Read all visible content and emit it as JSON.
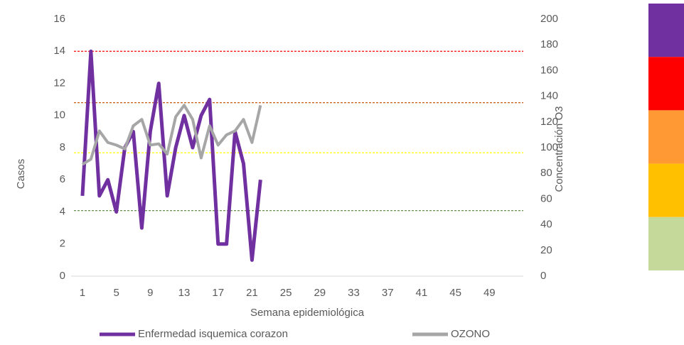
{
  "chart_data": {
    "type": "line",
    "x_label": "Semana epidemiológica",
    "y_label": "Casos",
    "y2_label": "Concentración O3",
    "x": [
      1,
      2,
      3,
      4,
      5,
      6,
      7,
      8,
      9,
      10,
      11,
      12,
      13,
      14,
      15,
      16,
      17,
      18,
      19,
      20,
      21,
      22
    ],
    "xlim": [
      0,
      53
    ],
    "xticks": [
      1,
      5,
      9,
      13,
      17,
      21,
      25,
      29,
      33,
      37,
      41,
      45,
      49
    ],
    "ylim": [
      0,
      16
    ],
    "yticks": [
      0,
      2,
      4,
      6,
      8,
      10,
      12,
      14,
      16
    ],
    "y2lim": [
      0,
      200
    ],
    "y2ticks": [
      0,
      20,
      40,
      60,
      80,
      100,
      120,
      140,
      160,
      180,
      200
    ],
    "series": [
      {
        "name": "Enfermedad isquemica corazon",
        "color": "#7030a0",
        "values": [
          5,
          14,
          5,
          6,
          4,
          8,
          9,
          3,
          9,
          12,
          5,
          8,
          10,
          8,
          10,
          11,
          2,
          2,
          9,
          7,
          1,
          6
        ]
      },
      {
        "name": "OZONO",
        "color": "#a6a6a6",
        "axis": "y2",
        "values": [
          87,
          91,
          113,
          104,
          102,
          99,
          117,
          122,
          102,
          103,
          95,
          124,
          133,
          122,
          92,
          117,
          102,
          110,
          113,
          122,
          104,
          133
        ]
      }
    ],
    "reference_lines": [
      {
        "value": 175,
        "color": "#ff0000",
        "axis": "y2"
      },
      {
        "value": 135,
        "color": "#c55a11",
        "axis": "y2"
      },
      {
        "value": 96,
        "color": "#ffff00",
        "axis": "y2"
      },
      {
        "value": 51,
        "color": "#548235",
        "axis": "y2"
      }
    ],
    "color_scale": [
      "#7030a0",
      "#ff0000",
      "#ff9933",
      "#ffc000",
      "#c5d99b"
    ]
  }
}
